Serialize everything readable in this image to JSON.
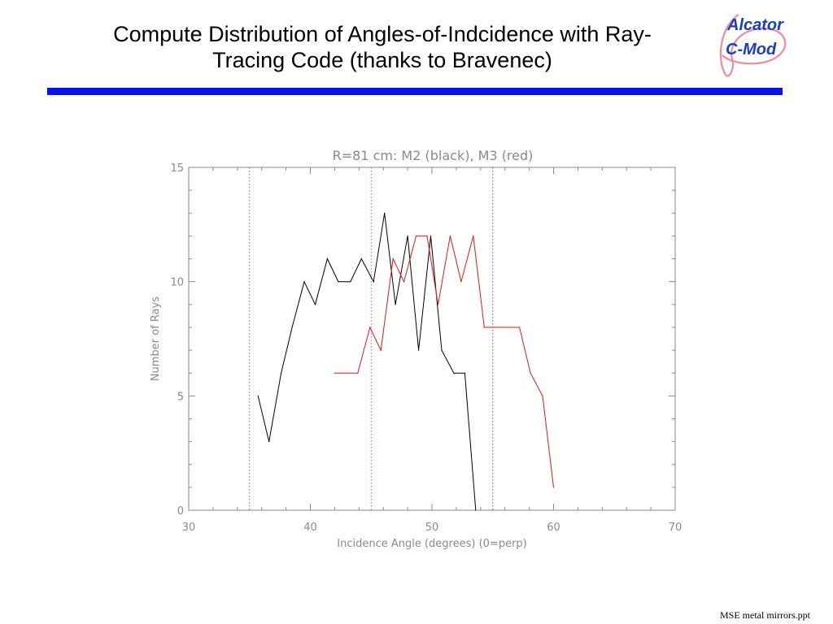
{
  "slide": {
    "title_line1": "Compute Distribution of Angles-of-Indcidence with Ray-",
    "title_line2": "Tracing Code (thanks to Bravenec)",
    "logo_line1": "Alcator",
    "logo_line2": "C-Mod",
    "footer": "MSE metal mirrors.ppt",
    "accent_bar_color": "#0a14e6"
  },
  "chart_data": {
    "type": "line",
    "title": "R=81 cm:  M2 (black), M3 (red)",
    "xlabel": "Incidence Angle (degrees) (0=perp)",
    "ylabel": "Number of Rays",
    "xlim": [
      30,
      70
    ],
    "ylim": [
      0,
      15
    ],
    "xticks": [
      30,
      40,
      50,
      60,
      70
    ],
    "yticks": [
      0,
      5,
      10,
      15
    ],
    "xtick_labels": [
      "30",
      "40",
      "50",
      "60",
      "70"
    ],
    "ytick_labels": [
      "0",
      "5",
      "10",
      "15"
    ],
    "vlines": [
      {
        "x": 35,
        "color": "#6a6ad0",
        "style": "dotted"
      },
      {
        "x": 45,
        "color": "#8a6ad0",
        "style": "dotted"
      },
      {
        "x": 55,
        "color": "#3050ff",
        "style": "dotted"
      }
    ],
    "series": [
      {
        "color": "#000000",
        "x": [
          35.7,
          36.6,
          37.6,
          38.5,
          39.5,
          40.4,
          41.4,
          42.3,
          43.3,
          44.2,
          45.2,
          46.1,
          47.0,
          48.0,
          48.9,
          49.9,
          50.8,
          51.8,
          52.7,
          53.6
        ],
        "y": [
          5,
          3,
          6,
          8,
          10,
          9,
          11,
          10,
          10,
          11,
          10,
          13,
          9,
          12,
          7,
          12,
          7,
          6,
          6,
          0
        ]
      },
      {
        "color": "#e01818",
        "x": [
          42.0,
          43.9,
          44.9,
          45.8,
          46.8,
          47.7,
          48.7,
          49.6,
          50.5,
          51.5,
          52.4,
          53.4,
          54.3,
          55.3,
          57.2,
          58.1,
          59.1,
          60.0
        ],
        "y": [
          6,
          6,
          8,
          7,
          11,
          10,
          12,
          12,
          9,
          12,
          10,
          12,
          8,
          8,
          8,
          6,
          5,
          1
        ]
      }
    ]
  }
}
